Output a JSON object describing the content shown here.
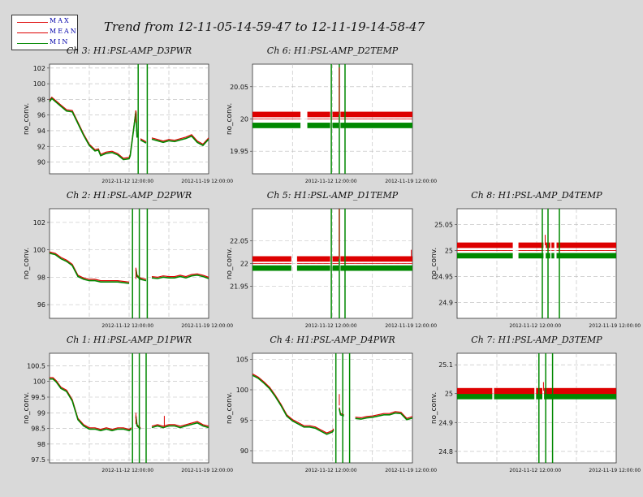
{
  "title": "Trend from 12-11-05-14-59-47 to 12-11-19-14-58-47",
  "legend": {
    "max": "MAX",
    "mean": "MEAN",
    "min": "MIN",
    "colors": {
      "max": "#dd0000",
      "mean": "#dd0000",
      "min": "#008800"
    }
  },
  "chart_data": [
    {
      "type": "line",
      "title": "Ch 3: H1:PSL-AMP_D3PWR",
      "ylabel": "no_conv.",
      "ylim": [
        88.5,
        102.5
      ],
      "yticks": [
        "102",
        "100",
        "98",
        "96",
        "94",
        "92",
        "90"
      ],
      "ytick_values": [
        102,
        100,
        98,
        96,
        94,
        92,
        90
      ],
      "xticks": [
        "2012-11-12 12:00:00",
        "2012-11-19 12:00:00"
      ],
      "xtick_values": [
        6.875,
        13.875
      ],
      "xlim": [
        0,
        14
      ],
      "series": [
        {
          "name": "MEAN",
          "x": [
            0,
            0.2,
            1,
            1.5,
            2,
            2.5,
            3,
            3.5,
            4,
            4.3,
            4.5,
            5,
            5.5,
            6,
            6.5,
            7,
            7.1,
            7.6,
            7.7,
            8,
            8.5,
            9,
            9.5,
            10,
            10.5,
            11,
            11.5,
            12,
            12.5,
            13,
            13.5,
            14
          ],
          "y": [
            97.8,
            98.2,
            97.2,
            96.6,
            96.5,
            95,
            93.5,
            92.2,
            91.5,
            91.6,
            90.9,
            91.2,
            91.3,
            91,
            90.4,
            90.5,
            90.9,
            96.5,
            93.2,
            92.9,
            92.5,
            93,
            92.8,
            92.6,
            92.8,
            92.7,
            92.9,
            93.1,
            93.4,
            92.6,
            92.2,
            93
          ]
        }
      ],
      "gaps": [
        [
          7.75,
          7.95
        ],
        [
          8.5,
          8.7
        ]
      ],
      "dropouts": [
        7.8,
        8.6
      ],
      "spikes": [
        {
          "x": 7.6,
          "y": 96.5
        }
      ]
    },
    {
      "type": "line",
      "title": "Ch 6: H1:PSL-AMP_D2TEMP",
      "ylabel": "no_conv.",
      "ylim": [
        19.915,
        20.085
      ],
      "yticks": [
        "20.05",
        "20",
        "19.95"
      ],
      "ytick_values": [
        20.05,
        20,
        19.95
      ],
      "xticks": [
        "2012-11-12 12:00:00",
        "2012-11-19 12:00:00"
      ],
      "xtick_values": [
        6.875,
        13.875
      ],
      "xlim": [
        0,
        14
      ],
      "levels": {
        "max": 20.007,
        "mean": 20.0,
        "min": 19.99
      },
      "gaps": [
        [
          4.2,
          4.8
        ],
        [
          6.8,
          7.0
        ],
        [
          7.55,
          7.7
        ]
      ],
      "dropouts": [
        6.9,
        7.6,
        8.1
      ],
      "spikes": [
        {
          "x": 7.6,
          "y": 20.08
        }
      ]
    },
    {
      "type": "line",
      "title": "Ch 2: H1:PSL-AMP_D2PWR",
      "ylabel": "no_conv.",
      "ylim": [
        95,
        103
      ],
      "yticks": [
        "102",
        "100",
        "98",
        "96"
      ],
      "ytick_values": [
        102,
        100,
        98,
        96
      ],
      "xticks": [
        "2012-11-12 12:00:00",
        "2012-11-19 12:00:00"
      ],
      "xtick_values": [
        6.875,
        13.875
      ],
      "xlim": [
        0,
        14
      ],
      "series": [
        {
          "name": "MEAN",
          "x": [
            0,
            0.5,
            1,
            1.5,
            2,
            2.5,
            3,
            3.5,
            4,
            4.5,
            5,
            5.5,
            6,
            6.5,
            7,
            7.6,
            7.7,
            8,
            8.5,
            9,
            9.5,
            10,
            10.5,
            11,
            11.5,
            12,
            12.5,
            13,
            13.5,
            14
          ],
          "y": [
            99.8,
            99.7,
            99.4,
            99.2,
            98.9,
            98.1,
            97.9,
            97.8,
            97.8,
            97.7,
            97.7,
            97.7,
            97.7,
            97.65,
            97.6,
            98.6,
            98.1,
            97.9,
            97.8,
            98.0,
            97.95,
            98.05,
            98.0,
            98.0,
            98.1,
            98.0,
            98.15,
            98.2,
            98.1,
            97.95
          ]
        }
      ],
      "gaps": [
        [
          7.25,
          7.5
        ],
        [
          8.5,
          8.7
        ]
      ],
      "dropouts": [
        7.3,
        7.9,
        8.6
      ],
      "spikes": [
        {
          "x": 7.6,
          "y": 98.7
        }
      ]
    },
    {
      "type": "line",
      "title": "Ch 5: H1:PSL-AMP_D1TEMP",
      "ylabel": "no_conv.",
      "ylim": [
        21.88,
        22.12
      ],
      "yticks": [
        "22.05",
        "22",
        "21.95"
      ],
      "ytick_values": [
        22.05,
        22,
        21.95
      ],
      "xticks": [
        "2012-11-12 12:00:00",
        "2012-11-19 12:00:00"
      ],
      "xtick_values": [
        6.875,
        13.875
      ],
      "xlim": [
        0,
        14
      ],
      "levels": {
        "max": 22.01,
        "mean": 22.0,
        "min": 21.99
      },
      "gaps": [
        [
          3.4,
          3.9
        ],
        [
          6.8,
          7.0
        ],
        [
          7.55,
          7.7
        ]
      ],
      "dropouts": [
        6.9,
        7.6,
        8.1
      ],
      "spikes": [
        {
          "x": 7.6,
          "y": 22.12
        },
        {
          "x": 13.9,
          "y": 22.03
        }
      ]
    },
    {
      "type": "line",
      "title": "Ch 8: H1:PSL-AMP_D4TEMP",
      "ylabel": "no_conv.",
      "ylim": [
        24.87,
        25.08
      ],
      "yticks": [
        "25.05",
        "25",
        "24.95",
        "24.9"
      ],
      "ytick_values": [
        25.05,
        25,
        24.95,
        24.9
      ],
      "xticks": [
        "2012-11-12 12:00:00",
        "2012-11-19 12:00:00"
      ],
      "xtick_values": [
        6.875,
        13.875
      ],
      "xlim": [
        0,
        14
      ],
      "levels": {
        "max": 25.01,
        "mean": 25.0,
        "min": 24.99
      },
      "gaps": [
        [
          4.9,
          5.4
        ],
        [
          7.6,
          7.8
        ],
        [
          8.2,
          8.3
        ],
        [
          8.55,
          8.75
        ]
      ],
      "dropouts": [
        7.5,
        8.0,
        9.0
      ],
      "spikes": [
        {
          "x": 7.75,
          "y": 25.03
        }
      ]
    },
    {
      "type": "line",
      "title": "Ch 1: H1:PSL-AMP_D1PWR",
      "ylabel": "no_conv.",
      "ylim": [
        97.4,
        100.9
      ],
      "yticks": [
        "100.5",
        "100",
        "99.5",
        "99",
        "98.5",
        "98",
        "97.5"
      ],
      "ytick_values": [
        100.5,
        100,
        99.5,
        99,
        98.5,
        98,
        97.5
      ],
      "xticks": [
        "2012-11-12 12:00:00",
        "2012-11-19 12:00:00"
      ],
      "xtick_values": [
        6.875,
        13.875
      ],
      "xlim": [
        0,
        14
      ],
      "series": [
        {
          "name": "MEAN",
          "x": [
            0,
            0.3,
            0.6,
            1,
            1.5,
            2,
            2.5,
            3,
            3.5,
            4,
            4.5,
            5,
            5.5,
            6,
            6.5,
            7,
            7.2,
            7.6,
            7.7,
            8,
            8.5,
            9,
            9.5,
            10,
            10.5,
            11,
            11.5,
            12,
            12.5,
            13,
            13.5,
            14
          ],
          "y": [
            100.1,
            100.1,
            100.0,
            99.8,
            99.7,
            99.4,
            98.8,
            98.6,
            98.5,
            98.5,
            98.45,
            98.5,
            98.45,
            98.5,
            98.5,
            98.45,
            98.5,
            98.9,
            98.6,
            98.5,
            98.5,
            98.55,
            98.6,
            98.55,
            98.6,
            98.6,
            98.55,
            98.6,
            98.65,
            98.7,
            98.6,
            98.55
          ]
        }
      ],
      "gaps": [
        [
          7.25,
          7.45
        ],
        [
          8.4,
          8.6
        ]
      ],
      "dropouts": [
        7.3,
        7.9,
        8.5
      ],
      "spikes": [
        {
          "x": 7.6,
          "y": 99.0
        },
        {
          "x": 10.1,
          "y": 98.9
        }
      ]
    },
    {
      "type": "line",
      "title": "Ch 4: H1:PSL-AMP_D4PWR",
      "ylabel": "no_conv.",
      "ylim": [
        88,
        106
      ],
      "yticks": [
        "105",
        "100",
        "95",
        "90"
      ],
      "ytick_values": [
        105,
        100,
        95,
        90
      ],
      "xticks": [
        "2012-11-12 12:00:00",
        "2012-11-19 12:00:00"
      ],
      "xtick_values": [
        6.875,
        13.875
      ],
      "xlim": [
        0,
        14
      ],
      "series": [
        {
          "name": "MEAN",
          "x": [
            0,
            0.5,
            1,
            1.5,
            2,
            2.5,
            3,
            3.5,
            4,
            4.5,
            5,
            5.5,
            6,
            6.5,
            7,
            7.1,
            7.6,
            7.7,
            8,
            8.5,
            9,
            9.5,
            10,
            10.5,
            11,
            11.5,
            12,
            12.5,
            13,
            13.5,
            14
          ],
          "y": [
            102.5,
            102,
            101.2,
            100.3,
            99,
            97.5,
            95.8,
            95,
            94.5,
            94,
            94,
            93.8,
            93.3,
            92.8,
            93.2,
            93.5,
            97,
            96,
            95.8,
            95.5,
            95.4,
            95.3,
            95.5,
            95.6,
            95.8,
            96,
            96,
            96.3,
            96.2,
            95.2,
            95.5
          ]
        }
      ],
      "gaps": [
        [
          7.25,
          7.5
        ],
        [
          8.4,
          8.6
        ]
      ],
      "dropouts": [
        7.3,
        7.9,
        8.5
      ],
      "spikes": [
        {
          "x": 7.6,
          "y": 99.3
        }
      ]
    },
    {
      "type": "line",
      "title": "Ch 7: H1:PSL-AMP_D3TEMP",
      "ylabel": "no_conv.",
      "ylim": [
        24.76,
        25.14
      ],
      "yticks": [
        "25.1",
        "25",
        "24.9",
        "24.8"
      ],
      "ytick_values": [
        25.1,
        25,
        24.9,
        24.8
      ],
      "xticks": [
        "2012-11-12 12:00:00",
        "2012-11-19 12:00:00"
      ],
      "xtick_values": [
        6.875,
        13.875
      ],
      "xlim": [
        0,
        14
      ],
      "levels": {
        "max": 25.01,
        "mean": 25.0,
        "min": 24.99
      },
      "gaps": [
        [
          3.1,
          3.25
        ],
        [
          6.8,
          6.95
        ],
        [
          7.5,
          7.65
        ]
      ],
      "dropouts": [
        7.2,
        7.8,
        8.4
      ],
      "spikes": [
        {
          "x": 7.6,
          "y": 25.04
        }
      ]
    }
  ]
}
